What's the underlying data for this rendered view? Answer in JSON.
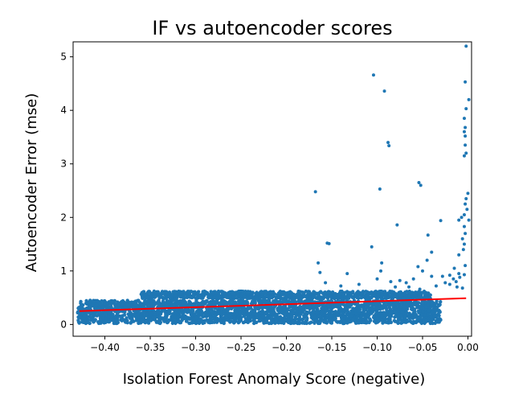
{
  "chart_data": {
    "type": "scatter",
    "title": "IF vs autoencoder scores",
    "xlabel": "Isolation Forest Anomaly Score (negative)",
    "ylabel": "Autoencoder Error (mse)",
    "xlim": [
      -0.435,
      0.004
    ],
    "ylim": [
      -0.22,
      5.28
    ],
    "xticks": [
      -0.4,
      -0.35,
      -0.3,
      -0.25,
      -0.2,
      -0.15,
      -0.1,
      -0.05,
      0.0
    ],
    "xtick_labels": [
      "−0.40",
      "−0.35",
      "−0.30",
      "−0.25",
      "−0.20",
      "−0.15",
      "−0.10",
      "−0.05",
      "0.00"
    ],
    "yticks": [
      0,
      1,
      2,
      3,
      4,
      5
    ],
    "ytick_labels": [
      "0",
      "1",
      "2",
      "3",
      "4",
      "5"
    ],
    "grid": false,
    "point_color": "#1f77b4",
    "trend_color": "#ff0000",
    "dense_bands": [
      {
        "x_range": [
          -0.43,
          -0.03
        ],
        "y_range": [
          0.02,
          0.45
        ]
      },
      {
        "x_range": [
          -0.36,
          -0.04
        ],
        "y_range": [
          0.48,
          0.62
        ]
      }
    ],
    "outliers": [
      [
        -0.002,
        5.2
      ],
      [
        -0.003,
        4.53
      ],
      [
        -0.104,
        4.66
      ],
      [
        -0.092,
        4.36
      ],
      [
        0.001,
        4.2
      ],
      [
        -0.002,
        4.03
      ],
      [
        -0.004,
        3.85
      ],
      [
        -0.003,
        3.68
      ],
      [
        -0.004,
        3.6
      ],
      [
        -0.003,
        3.52
      ],
      [
        -0.003,
        3.35
      ],
      [
        -0.002,
        3.2
      ],
      [
        -0.088,
        3.4
      ],
      [
        -0.087,
        3.34
      ],
      [
        -0.004,
        3.15
      ],
      [
        -0.097,
        2.53
      ],
      [
        -0.168,
        2.48
      ],
      [
        -0.054,
        2.65
      ],
      [
        -0.052,
        2.6
      ],
      [
        0.0,
        2.45
      ],
      [
        -0.002,
        2.35
      ],
      [
        -0.003,
        2.25
      ],
      [
        -0.001,
        2.15
      ],
      [
        -0.004,
        2.05
      ],
      [
        0.001,
        1.95
      ],
      [
        -0.007,
        2.0
      ],
      [
        -0.01,
        1.95
      ],
      [
        -0.004,
        1.83
      ],
      [
        -0.003,
        1.7
      ],
      [
        -0.03,
        1.94
      ],
      [
        -0.078,
        1.86
      ],
      [
        -0.044,
        1.67
      ],
      [
        -0.006,
        1.6
      ],
      [
        -0.004,
        1.5
      ],
      [
        -0.155,
        1.52
      ],
      [
        -0.153,
        1.51
      ],
      [
        -0.106,
        1.45
      ],
      [
        -0.005,
        1.4
      ],
      [
        -0.04,
        1.35
      ],
      [
        -0.01,
        1.3
      ],
      [
        -0.045,
        1.2
      ],
      [
        -0.055,
        1.08
      ],
      [
        -0.05,
        1.0
      ],
      [
        -0.04,
        0.9
      ],
      [
        -0.06,
        0.85
      ],
      [
        -0.095,
        1.15
      ],
      [
        -0.165,
        1.15
      ],
      [
        -0.003,
        1.1
      ],
      [
        -0.015,
        1.05
      ],
      [
        -0.01,
        0.95
      ],
      [
        -0.02,
        0.92
      ],
      [
        -0.009,
        0.88
      ],
      [
        -0.163,
        0.97
      ],
      [
        -0.133,
        0.95
      ],
      [
        -0.096,
        1.0
      ],
      [
        -0.1,
        0.85
      ],
      [
        -0.085,
        0.8
      ],
      [
        -0.075,
        0.82
      ],
      [
        -0.157,
        0.78
      ],
      [
        -0.14,
        0.72
      ],
      [
        -0.12,
        0.75
      ],
      [
        -0.068,
        0.78
      ],
      [
        -0.028,
        0.9
      ],
      [
        -0.025,
        0.78
      ],
      [
        -0.035,
        0.72
      ],
      [
        -0.08,
        0.7
      ],
      [
        -0.065,
        0.7
      ],
      [
        -0.02,
        0.75
      ],
      [
        -0.012,
        0.7
      ],
      [
        -0.004,
        0.93
      ],
      [
        -0.016,
        0.85
      ],
      [
        -0.013,
        0.8
      ],
      [
        -0.053,
        0.66
      ],
      [
        -0.006,
        0.68
      ]
    ],
    "trend_line": {
      "x": [
        -0.428,
        -0.002
      ],
      "y": [
        0.25,
        0.49
      ]
    }
  }
}
